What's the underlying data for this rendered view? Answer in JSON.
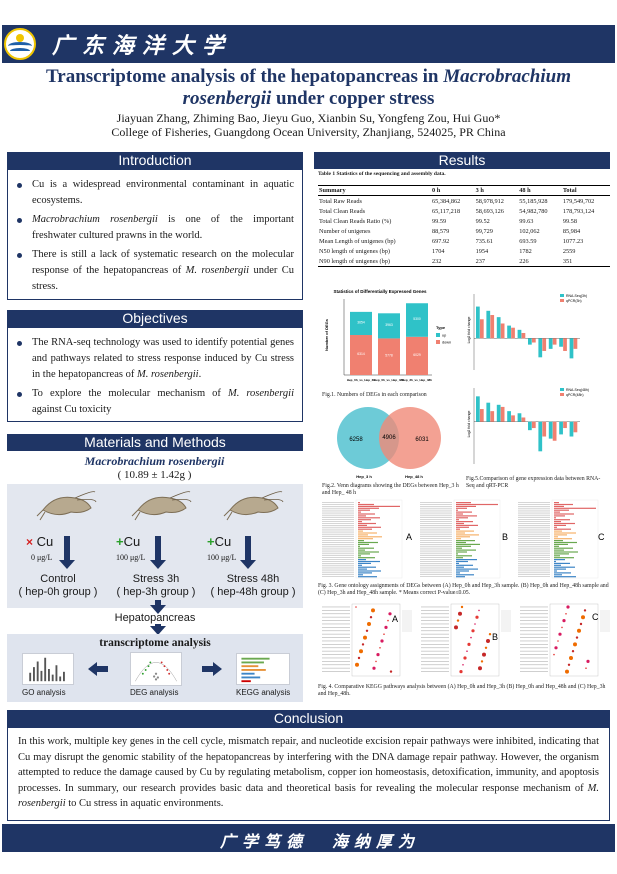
{
  "header": {
    "university": "广东海洋大学",
    "title_part1": "Transcriptome analysis of the hepatopancreas in ",
    "title_italic1": "Macrobrachium",
    "title_italic2": "rosenbergii",
    "title_part2": " under copper stress",
    "authors": "Jiayuan Zhang, Zhiming Bao, Jieyu Guo, Xianbin Su, Yongfeng Zou, Hui Guo*",
    "affiliation": "College of Fisheries, Guangdong Ocean University, Zhanjiang, 524025, PR China"
  },
  "introduction": {
    "heading": "Introduction",
    "b1": "Cu is a widespread environmental contaminant in aquatic ecosystems.",
    "b2_it": "Macrobrachium rosenbergii",
    "b2": " is one of the important freshwater cultured prawns in the world.",
    "b3": "There is still a lack of systematic research on the molecular response of the hepatopancreas of ",
    "b3_it": "M. rosenbergii",
    "b3_end": " under Cu stress."
  },
  "objectives": {
    "heading": "Objectives",
    "b1": "The RNA-seq technology was used to identify potential genes and pathways related to stress response induced by Cu stress in the hepatopancreas of ",
    "b1_it": "M. rosenbergii",
    "b1_end": ".",
    "b2": "To explore the molecular mechanism of ",
    "b2_it": "M. rosenbergii",
    "b2_end": " against Cu toxicity"
  },
  "methods": {
    "heading": "Materials and Methods",
    "species": "Macrobrachium rosenbergii",
    "size": "( 10.89 ± 1.42g )",
    "groups": [
      {
        "sign": "×",
        "cu": "Cu",
        "conc": "0 μg/L",
        "name": "Control",
        "sub": "( hep-0h group )"
      },
      {
        "sign": "+",
        "cu": "Cu",
        "conc": "100 μg/L",
        "name": "Stress 3h",
        "sub": "( hep-3h group )"
      },
      {
        "sign": "+",
        "cu": "Cu",
        "conc": "100 μg/L",
        "name": "Stress 48h",
        "sub": "( hep-48h group )"
      }
    ],
    "hepatopancreas": "Hepatopancreas",
    "transcriptome": "transcriptome analysis",
    "go": "GO analysis",
    "deg": "DEG analysis",
    "kegg": "KEGG analysis"
  },
  "results": {
    "heading": "Results",
    "table_caption": "Table 1  Statistics of the sequencing and assembly data.",
    "table_header": [
      "Summary",
      "0 h",
      "3 h",
      "48 h",
      "Total"
    ],
    "table_rows": [
      [
        "Total Raw Reads",
        "65,384,862",
        "58,978,912",
        "55,185,928",
        "179,549,702"
      ],
      [
        "Total Clean Reads",
        "65,117,218",
        "58,693,126",
        "54,982,780",
        "178,793,124"
      ],
      [
        "Total Clean Reads Ratio (%)",
        "99.59",
        "99.52",
        "99.63",
        "99.58"
      ],
      [
        "Number of unigenes",
        "88,579",
        "99,729",
        "102,062",
        "85,984"
      ],
      [
        "Mean Length of unigenes (bp)",
        "697.92",
        "735.61",
        "693.59",
        "1077.23"
      ],
      [
        "N50 length of unigenes (bp)",
        "1704",
        "1954",
        "1782",
        "2559"
      ],
      [
        "N90 length of unigenes (bp)",
        "232",
        "237",
        "226",
        "351"
      ]
    ],
    "fig1_title": "Statistics of Differentially Expressed Genes",
    "fig1_ylabel": "Number of DEGs",
    "fig1_legend": "Type",
    "fig1_up": "up",
    "fig1_down": "down",
    "fig1_caption": "Fig.1. Numbers of DEGs in each comparison",
    "fig2_left": "6258",
    "fig2_mid": "4906",
    "fig2_right": "6031",
    "fig2_label_left": "Hep_3 h",
    "fig2_label_right": "Hep_48 h",
    "fig2_caption": "Fig.2. Venn diagrams showing the DEGs between Hep_3 h and Hep_ 48 h",
    "fig5_leg1a": "RNA-Seq(3h)",
    "fig5_leg1b": "qPCR(3h)",
    "fig5_leg2a": "RNA-Seq(48h)",
    "fig5_leg2b": "qPCR(48h)",
    "fig5_ylabel": "Log2 fold change",
    "fig5_caption": "Fig.5.Comparison of gene expression data between RNA-Seq and qRT-PCR",
    "fig3_A": "A",
    "fig3_B": "B",
    "fig3_C": "C",
    "fig3_caption": "Fig. 3. Gene ontology assignments of DEGs between (A) Hep_0h and Hep_3h sample. (B) Hep_0h and Hep_48h sample and (C) Hep_3h and Hep_48h sample. * Means correct P-value≤0.05.",
    "fig4_A": "A",
    "fig4_B": "B",
    "fig4_C": "C",
    "fig4_caption": "Fig. 4. Comparative KEGG pathways analysis between (A) Hep_0h and Hep_3h (B) Hep_0h and Hep_48h and (C) Hep_3h and Hep_48h."
  },
  "chart_data": [
    {
      "type": "bar",
      "title": "Statistics of Differentially Expressed Genes",
      "ylabel": "Number of DEGs",
      "categories": [
        "Hep_0h_vs_Hep_3h",
        "Hep_0h_vs_Hep_48h",
        "Hep_3h_vs_Hep_48h"
      ],
      "series": [
        {
          "name": "down",
          "values": [
            6314,
            5778,
            6029
          ]
        },
        {
          "name": "up",
          "values": [
            3654,
            3963,
            5300
          ]
        }
      ],
      "ylim": [
        0,
        12000
      ],
      "legend": "right",
      "colors": {
        "down": "#f08070",
        "up": "#2fc2c8"
      }
    },
    {
      "type": "bar",
      "ylabel": "Log2 fold change",
      "categories": [
        "g1",
        "g2",
        "g3",
        "g4",
        "g5",
        "g6",
        "g7",
        "g8",
        "g9",
        "g10"
      ],
      "series": [
        {
          "name": "RNA-Seq(3h)",
          "values": [
            3.0,
            2.6,
            2.0,
            1.2,
            0.8,
            -0.6,
            -1.8,
            -1.0,
            -0.8,
            -1.9
          ]
        },
        {
          "name": "qPCR(3h)",
          "values": [
            1.8,
            2.2,
            1.4,
            1.0,
            0.5,
            -0.4,
            -1.2,
            -0.6,
            -1.2,
            -1.0
          ]
        }
      ],
      "ylim": [
        -3,
        4
      ],
      "colors": {
        "RNA-Seq(3h)": "#2fc2c8",
        "qPCR(3h)": "#f08070"
      }
    },
    {
      "type": "bar",
      "ylabel": "Log2 fold change",
      "categories": [
        "g1",
        "g2",
        "g3",
        "g4",
        "g5",
        "g6",
        "g7",
        "g8",
        "g9",
        "g10"
      ],
      "series": [
        {
          "name": "RNA-Seq(48h)",
          "values": [
            2.4,
            1.8,
            1.6,
            1.0,
            0.8,
            -0.8,
            -2.8,
            -1.6,
            -1.2,
            -1.4
          ]
        },
        {
          "name": "qPCR(48h)",
          "values": [
            1.2,
            1.0,
            1.4,
            0.6,
            0.4,
            -0.6,
            -1.4,
            -1.8,
            -0.6,
            -1.0
          ]
        }
      ],
      "ylim": [
        -4,
        3
      ],
      "colors": {
        "RNA-Seq(48h)": "#2fc2c8",
        "qPCR(48h)": "#f08070"
      }
    }
  ],
  "conclusion": {
    "heading": "Conclusion",
    "text1": "In this work, multiple key genes in the cell cycle, mismatch repair, and nucleotide excision repair pathways were inhibited, indicating that Cu may disrupt the genomic stability of the hepatopancreas by interfering with the DNA damage repair pathway. However, the organism attempted to reduce the damage caused by Cu by regulating metabolism, copper ion homeostasis, detoxification, immunity, and apoptosis processes. In summary, our research provides basic data and theoretical basis for revealing the molecular response mechanism of ",
    "text_it": "M. rosenbergii",
    "text2": " to Cu stress in aquatic environments."
  },
  "footer": {
    "motto1": "广学笃德",
    "motto2": "海纳厚为"
  }
}
